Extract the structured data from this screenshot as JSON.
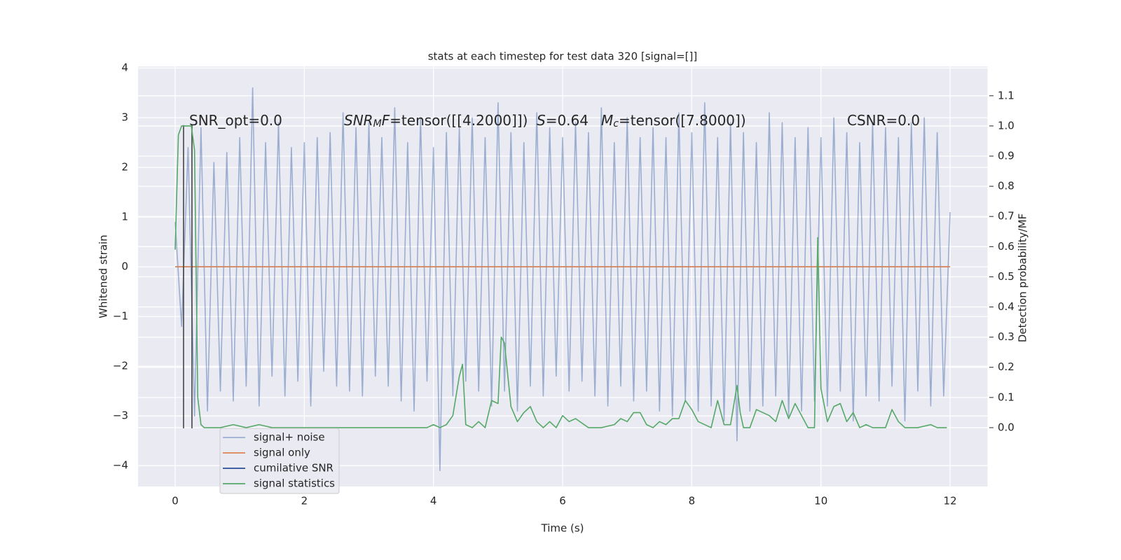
{
  "chart_data": {
    "type": "line",
    "title": "stats at each timestep for test data 320 [signal=[]]",
    "xlabel": "Time (s)",
    "ylabel": "Whitened strain",
    "y2label": "Detection probability/MF",
    "xlim": [
      -0.575,
      12.585
    ],
    "ylim": [
      -4.42,
      4.03
    ],
    "y2lim": [
      -0.195,
      1.197
    ],
    "xticks": [
      0,
      2,
      4,
      6,
      8,
      10,
      12
    ],
    "yticks": [
      {
        "value": -4,
        "label": "−4"
      },
      {
        "value": -3,
        "label": "−3"
      },
      {
        "value": -2,
        "label": "−2"
      },
      {
        "value": -1,
        "label": "−1"
      },
      0,
      1,
      2,
      3,
      4
    ],
    "y2ticks": [
      {
        "value": 0,
        "label": "0.0"
      },
      {
        "value": 0.1,
        "label": "0.1"
      },
      {
        "value": 0.2,
        "label": "0.2"
      },
      {
        "value": 0.3,
        "label": "0.3"
      },
      {
        "value": 0.4,
        "label": "0.4"
      },
      {
        "value": 0.5,
        "label": "0.5"
      },
      {
        "value": 0.6,
        "label": "0.6"
      },
      {
        "value": 0.7,
        "label": "0.7"
      },
      {
        "value": 0.8,
        "label": "0.8"
      },
      {
        "value": 0.9,
        "label": "0.9"
      },
      {
        "value": 1,
        "label": "1.0"
      },
      {
        "value": 1.1,
        "label": "1.1"
      }
    ],
    "grid": true,
    "legend": "lower left",
    "series": [
      {
        "name": "signal+ noise",
        "color": "#4c72b0",
        "opacity": 0.5,
        "x": [
          0,
          0.1,
          0.2,
          0.3,
          0.4,
          0.5,
          0.6,
          0.7,
          0.8,
          0.9,
          1,
          1.1,
          1.2,
          1.3,
          1.4,
          1.5,
          1.6,
          1.7,
          1.8,
          1.9,
          2,
          2.1,
          2.2,
          2.3,
          2.4,
          2.5,
          2.6,
          2.7,
          2.8,
          2.9,
          3,
          3.1,
          3.2,
          3.3,
          3.4,
          3.5,
          3.6,
          3.7,
          3.8,
          3.9,
          4,
          4.1,
          4.2,
          4.3,
          4.4,
          4.5,
          4.6,
          4.7,
          4.8,
          4.9,
          5,
          5.1,
          5.2,
          5.3,
          5.4,
          5.5,
          5.6,
          5.7,
          5.8,
          5.9,
          6,
          6.1,
          6.2,
          6.3,
          6.4,
          6.5,
          6.6,
          6.7,
          6.8,
          6.9,
          7,
          7.1,
          7.2,
          7.3,
          7.4,
          7.5,
          7.6,
          7.7,
          7.8,
          7.9,
          8,
          8.1,
          8.2,
          8.3,
          8.4,
          8.5,
          8.6,
          8.7,
          8.8,
          8.9,
          9,
          9.1,
          9.2,
          9.3,
          9.4,
          9.5,
          9.6,
          9.7,
          9.8,
          9.9,
          10,
          10.1,
          10.2,
          10.3,
          10.4,
          10.5,
          10.6,
          10.7,
          10.8,
          10.9,
          11,
          11.1,
          11.2,
          11.3,
          11.4,
          11.5,
          11.6,
          11.7,
          11.8,
          11.9,
          12
        ],
        "values": [
          0.9,
          -1.2,
          2.4,
          -3.0,
          2.8,
          -2.9,
          2.1,
          -2.5,
          2.3,
          -2.7,
          2.6,
          -2.4,
          3.6,
          -2.8,
          2.5,
          -2.2,
          2.9,
          -2.6,
          2.4,
          -2.3,
          2.5,
          -2.8,
          2.6,
          -2.1,
          2.7,
          -2.4,
          3.1,
          -2.5,
          2.8,
          -2.6,
          2.9,
          -2.2,
          2.6,
          -2.4,
          3.2,
          -2.7,
          2.5,
          -2.9,
          3.0,
          -2.3,
          2.4,
          -4.1,
          2.7,
          -2.6,
          2.8,
          -2.3,
          3.0,
          -2.5,
          2.6,
          -2.8,
          3.3,
          -2.5,
          2.7,
          -2.9,
          2.5,
          -2.4,
          3.1,
          -2.6,
          2.8,
          -2.2,
          2.6,
          -2.5,
          2.9,
          -2.3,
          2.7,
          -2.6,
          3.2,
          -2.8,
          2.5,
          -2.4,
          3.0,
          -2.7,
          2.6,
          -2.5,
          2.8,
          -2.9,
          2.6,
          -3.0,
          3.1,
          -2.7,
          2.7,
          -2.9,
          3.3,
          -2.8,
          2.6,
          -3.1,
          2.9,
          -3.5,
          2.7,
          -2.9,
          2.5,
          -2.8,
          3.1,
          -2.6,
          2.9,
          -3.0,
          2.6,
          -2.9,
          2.8,
          -2.7,
          2.6,
          -2.8,
          3.0,
          -2.5,
          2.7,
          -3.1,
          2.5,
          -2.6,
          2.9,
          -2.7,
          2.8,
          -2.4,
          2.6,
          -3.1,
          2.9,
          -2.5,
          3.0,
          -2.8,
          2.7,
          -2.6,
          1.1
        ]
      },
      {
        "name": "signal only",
        "color": "#dd8452",
        "x": [
          0,
          12
        ],
        "values": [
          0,
          0
        ]
      },
      {
        "name": "cumilative SNR",
        "color": "#2a4f9a",
        "x": [
          0,
          12
        ],
        "values": [
          0,
          0
        ]
      },
      {
        "name": "signal statistics",
        "color": "#55a868",
        "axis": "y2",
        "x": [
          0,
          0.05,
          0.1,
          0.15,
          0.25,
          0.3,
          0.35,
          0.4,
          0.45,
          0.5,
          0.7,
          0.9,
          1.1,
          1.3,
          1.5,
          1.7,
          1.9,
          2.5,
          3.0,
          3.5,
          3.9,
          4.0,
          4.1,
          4.2,
          4.3,
          4.4,
          4.45,
          4.5,
          4.6,
          4.7,
          4.8,
          4.9,
          5.0,
          5.05,
          5.1,
          5.2,
          5.3,
          5.4,
          5.5,
          5.6,
          5.7,
          5.8,
          5.9,
          6.0,
          6.1,
          6.2,
          6.4,
          6.6,
          6.8,
          6.9,
          7.0,
          7.1,
          7.2,
          7.3,
          7.4,
          7.5,
          7.6,
          7.7,
          7.8,
          7.9,
          8.0,
          8.1,
          8.3,
          8.4,
          8.5,
          8.6,
          8.7,
          8.75,
          8.8,
          8.9,
          9.0,
          9.2,
          9.3,
          9.4,
          9.5,
          9.6,
          9.8,
          9.9,
          9.95,
          10.0,
          10.1,
          10.2,
          10.3,
          10.4,
          10.5,
          10.6,
          10.7,
          10.8,
          11.0,
          11.1,
          11.2,
          11.3,
          11.5,
          11.7,
          11.8,
          11.95
        ],
        "values": [
          0.59,
          0.97,
          1.0,
          1.0,
          1.0,
          0.92,
          0.1,
          0.01,
          0.0,
          0.0,
          0.0,
          0.01,
          0.0,
          0.01,
          0.0,
          0.0,
          0.0,
          0.0,
          0.0,
          0.0,
          0.0,
          0.01,
          0.0,
          0.01,
          0.04,
          0.17,
          0.21,
          0.01,
          0.0,
          0.02,
          0.0,
          0.09,
          0.08,
          0.3,
          0.28,
          0.07,
          0.02,
          0.05,
          0.07,
          0.02,
          0.0,
          0.02,
          0.0,
          0.04,
          0.02,
          0.03,
          0.0,
          0.0,
          0.01,
          0.03,
          0.02,
          0.05,
          0.05,
          0.01,
          0.0,
          0.02,
          0.01,
          0.03,
          0.03,
          0.09,
          0.06,
          0.02,
          0.0,
          0.09,
          0.01,
          0.01,
          0.14,
          0.05,
          0.0,
          0.0,
          0.06,
          0.04,
          0.02,
          0.09,
          0.03,
          0.08,
          0.0,
          0.0,
          0.63,
          0.13,
          0.02,
          0.07,
          0.08,
          0.02,
          0.05,
          0.0,
          0.01,
          0.0,
          0.0,
          0.06,
          0.02,
          0.0,
          0.0,
          0.01,
          0.0,
          0.0
        ]
      }
    ],
    "vlines": {
      "color": "#444444",
      "x": [
        0.13,
        0.26
      ],
      "ymin": -3.25,
      "ymax": 2.85
    },
    "annotations": [
      [
        {
          "text": "SNR_opt=0.0"
        }
      ],
      [
        {
          "text": "SNR",
          "italic": true
        },
        {
          "text": "M",
          "italic": true,
          "sub": true
        },
        {
          "text": "F",
          "italic": true
        },
        {
          "text": "=tensor([[4.2000]])"
        }
      ],
      [
        {
          "text": "S",
          "italic": true
        },
        {
          "text": "=0.64"
        }
      ],
      [
        {
          "text": "M",
          "italic": true
        },
        {
          "text": "c",
          "italic": true,
          "sub": true
        },
        {
          "text": "=tensor([7.8000])"
        }
      ],
      [
        {
          "text": "CSNR=0.0"
        }
      ]
    ]
  }
}
